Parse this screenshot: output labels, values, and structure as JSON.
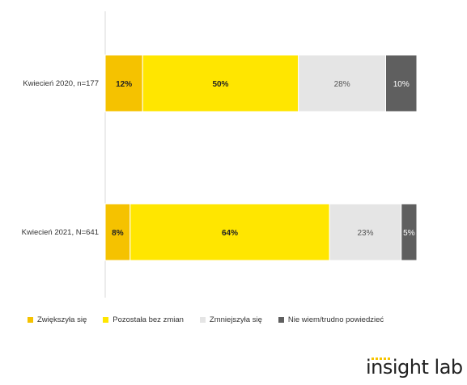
{
  "chart_data": {
    "type": "bar",
    "orientation": "horizontal",
    "stacked": true,
    "categories": [
      "Kwiecień 2020, n=177",
      "Kwiecień 2021, N=641"
    ],
    "series": [
      {
        "name": "Zwiększyła się",
        "values": [
          12,
          8
        ],
        "labels": [
          "12%",
          "8%"
        ],
        "color": "#f5c200",
        "label_bold": true
      },
      {
        "name": "Pozostała bez zmian",
        "values": [
          50,
          64
        ],
        "labels": [
          "50%",
          "64%"
        ],
        "color": "#ffe600",
        "label_bold": true
      },
      {
        "name": "Zmniejszyła się",
        "values": [
          28,
          23
        ],
        "labels": [
          "28%",
          "23%"
        ],
        "color": "#e5e5e5",
        "label_bold": false
      },
      {
        "name": "Nie wiem/trudno powiedzieć",
        "values": [
          10,
          5
        ],
        "labels": [
          "10%",
          "5%"
        ],
        "color": "#5f5f5f",
        "label_bold": false
      }
    ],
    "xlim": [
      0,
      100
    ],
    "grid": false,
    "legend_position": "bottom"
  },
  "logo": {
    "text": "insight lab"
  }
}
